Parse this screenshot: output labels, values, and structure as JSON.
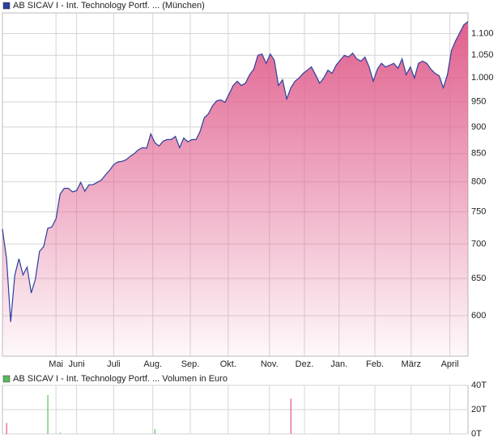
{
  "chart_data": [
    {
      "type": "area",
      "log_scale": true,
      "grid": true,
      "series": [
        {
          "name": "AB SICAV I - Int. Technology Portf. ... (München)",
          "color": "#2b3f9e",
          "fill": "#e0608e",
          "values": [
            723,
            678,
            592,
            655,
            678,
            655,
            666,
            630,
            649,
            689,
            696,
            724,
            726,
            739,
            779,
            789,
            789,
            783,
            785,
            799,
            784,
            795,
            795,
            799,
            803,
            812,
            820,
            830,
            835,
            836,
            839,
            845,
            850,
            857,
            861,
            860,
            887,
            870,
            864,
            873,
            876,
            876,
            882,
            861,
            879,
            872,
            876,
            876,
            892,
            918,
            926,
            942,
            952,
            954,
            949,
            966,
            984,
            993,
            984,
            989,
            1007,
            1019,
            1050,
            1053,
            1032,
            1053,
            1039,
            984,
            996,
            956,
            979,
            993,
            1000,
            1010,
            1017,
            1024,
            1007,
            989,
            1000,
            1017,
            1010,
            1028,
            1039,
            1050,
            1046,
            1055,
            1042,
            1037,
            1046,
            1024,
            993,
            1019,
            1032,
            1024,
            1028,
            1032,
            1021,
            1042,
            1007,
            1024,
            1000,
            1032,
            1037,
            1032,
            1019,
            1010,
            1005,
            979,
            1007,
            1061,
            1083,
            1102,
            1121,
            1129
          ]
        }
      ],
      "xlim": [
        0,
        113
      ],
      "xticks": [
        {
          "value": 13,
          "label": "Mai"
        },
        {
          "value": 18,
          "label": "Juni"
        },
        {
          "value": 27,
          "label": "Juli"
        },
        {
          "value": 36.5,
          "label": "Aug."
        },
        {
          "value": 45.6,
          "label": "Sep."
        },
        {
          "value": 54.8,
          "label": "Okt."
        },
        {
          "value": 64.8,
          "label": "Nov."
        },
        {
          "value": 73.3,
          "label": "Dez."
        },
        {
          "value": 81.7,
          "label": "Jan."
        },
        {
          "value": 90.4,
          "label": "Feb."
        },
        {
          "value": 99.2,
          "label": "März"
        },
        {
          "value": 108.6,
          "label": "April"
        }
      ],
      "ylim": [
        550,
        1150
      ],
      "yticks": [
        600,
        650,
        700,
        750,
        800,
        850,
        900,
        950,
        {
          "value": 1000,
          "label": "1.000"
        },
        {
          "value": 1050,
          "label": "1.050"
        },
        {
          "value": 1100,
          "label": "1.100"
        }
      ]
    },
    {
      "type": "bar",
      "grid": true,
      "series": [
        {
          "name": "AB SICAV I - Int. Technology Portf. ... Volumen in Euro",
          "color": "#5cb85c",
          "x": [
            1,
            11,
            14,
            37,
            70
          ],
          "values": [
            9,
            32,
            1,
            4,
            29
          ],
          "colors": [
            "#e05a7a",
            "#5cc45c",
            "#5cc45c",
            "#5cc45c",
            "#e05a7a"
          ]
        }
      ],
      "xlim": [
        0,
        113
      ],
      "ylim": [
        0,
        40
      ],
      "yticks": [
        {
          "value": 0,
          "label": "0T"
        },
        {
          "value": 20,
          "label": "20T"
        },
        {
          "value": 40,
          "label": "40T"
        }
      ]
    }
  ]
}
